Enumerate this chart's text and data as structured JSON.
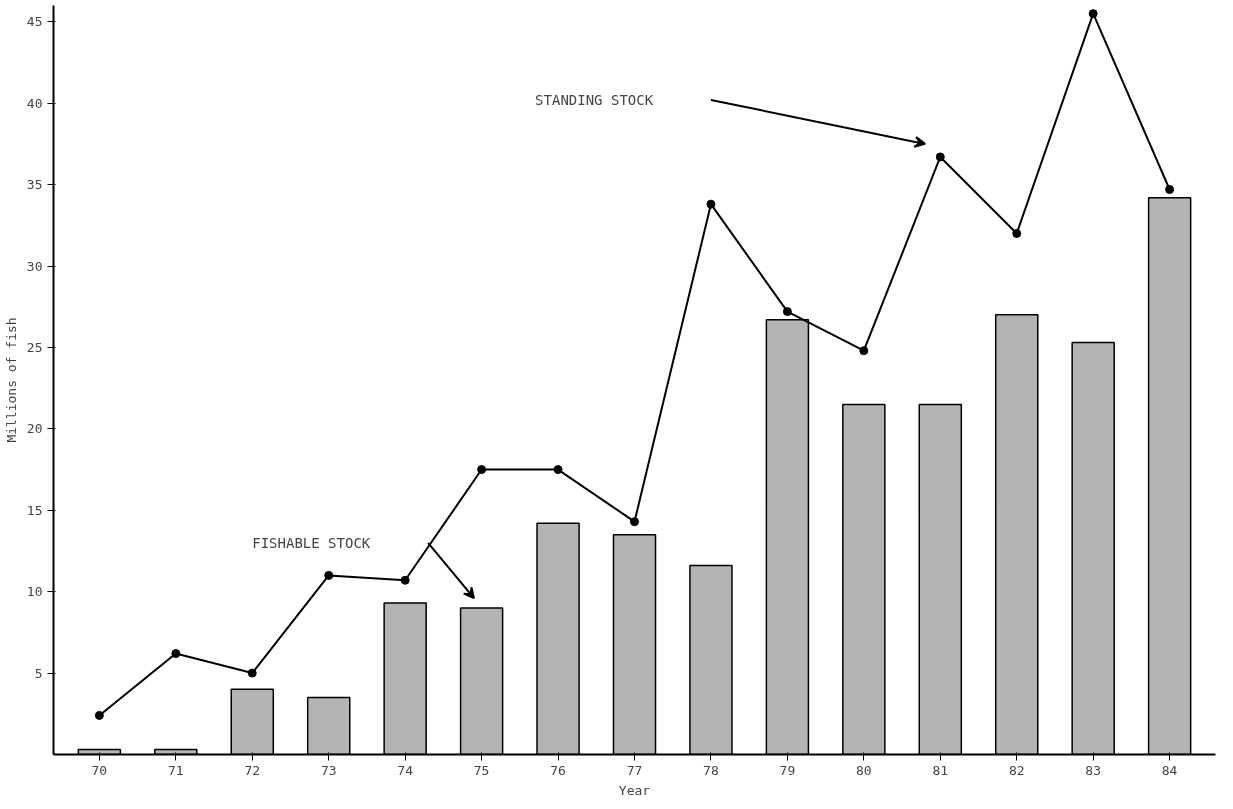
{
  "chart_data": {
    "type": "bar",
    "xlabel": "Year",
    "ylabel": "Millions of fish",
    "categories": [
      "70",
      "71",
      "72",
      "73",
      "74",
      "75",
      "76",
      "77",
      "78",
      "79",
      "80",
      "81",
      "82",
      "83",
      "84"
    ],
    "ylim": [
      0,
      46
    ],
    "yticks": [
      5,
      10,
      15,
      20,
      25,
      30,
      35,
      40,
      45
    ],
    "grid": false,
    "marker": "circle",
    "series": [
      {
        "color": "#b4b4b4",
        "values": [
          0.3,
          0.3,
          4,
          3.5,
          9.3,
          9,
          14.2,
          13.5,
          11.6,
          26.7,
          21.5,
          21.5,
          27,
          25.3,
          34.2
        ]
      },
      {
        "type": "line",
        "color": "#000000",
        "values": [
          2.4,
          6.2,
          5,
          11,
          10.7,
          17.5,
          17.5,
          14.3,
          33.8,
          27.2,
          24.8,
          36.7,
          32,
          45.5,
          34.7
        ]
      }
    ],
    "annotations": [
      "FISHABLE STOCK",
      "STANDING STOCK"
    ]
  }
}
